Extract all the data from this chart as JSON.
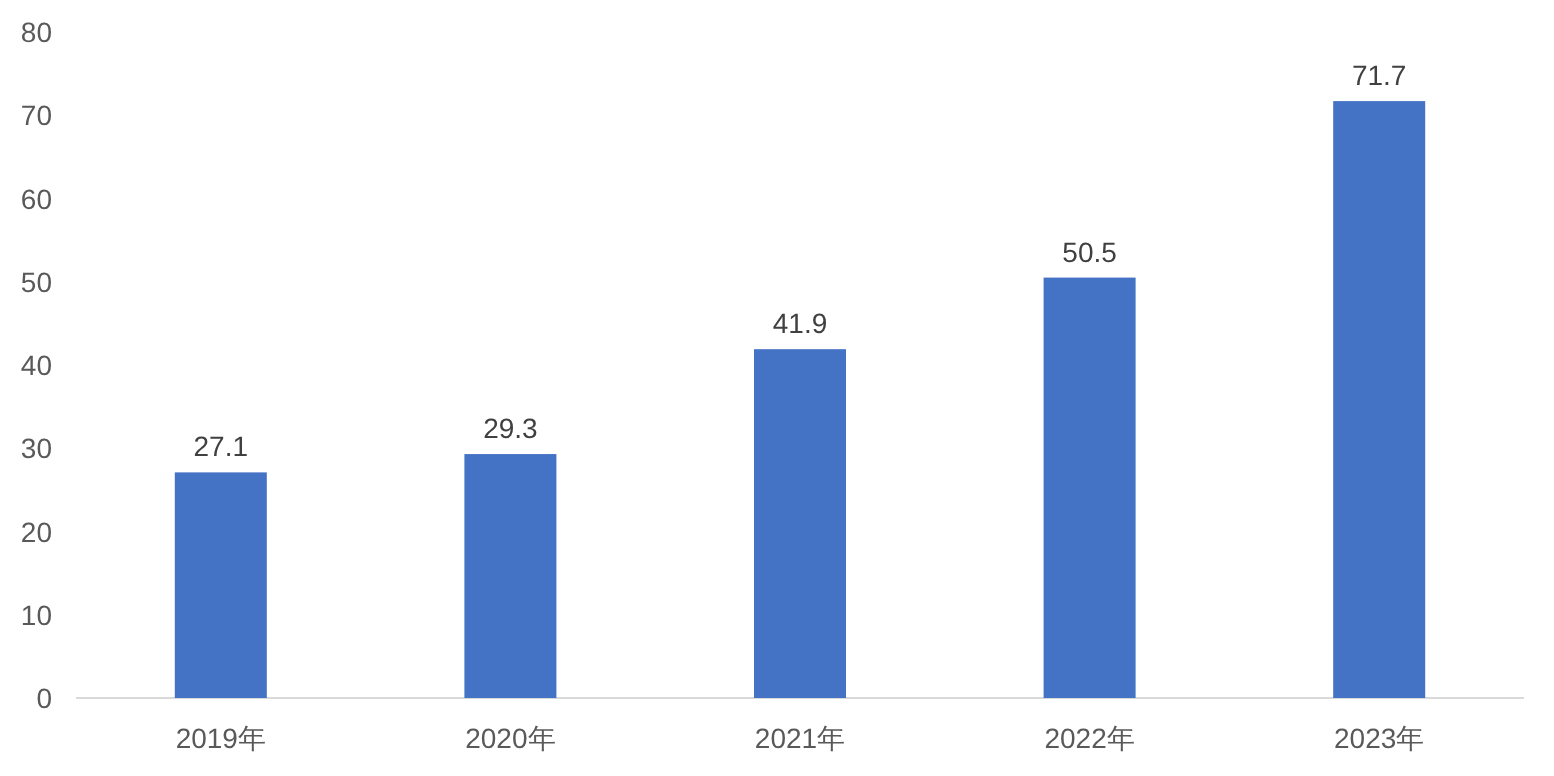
{
  "chart_data": {
    "type": "bar",
    "categories": [
      "2019年",
      "2020年",
      "2021年",
      "2022年",
      "2023年"
    ],
    "values": [
      27.1,
      29.3,
      41.9,
      50.5,
      71.7
    ],
    "color": "#4472c4",
    "ylim": [
      0,
      80
    ],
    "yticks": [
      0,
      10,
      20,
      30,
      40,
      50,
      60,
      70,
      80
    ],
    "data_labels": true,
    "grid": false
  }
}
